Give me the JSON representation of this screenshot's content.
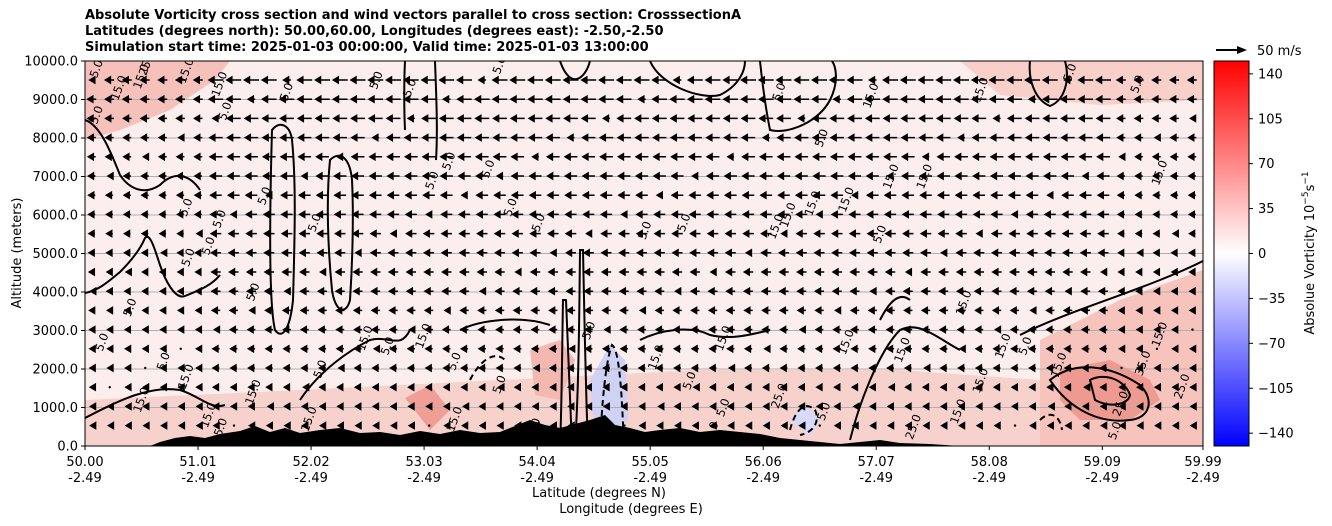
{
  "chart_data": {
    "type": "heatmap",
    "title_lines": [
      "Absolute Vorticity cross section and wind vectors parallel to cross section: CrosssectionA",
      "Latitudes (degrees north): 50.00,60.00, Longitudes (degrees east): -2.50,-2.50",
      "Simulation start time: 2025-01-03 00:00:00, Valid time: 2025-01-03 13:00:00"
    ],
    "ylabel": "Altitude (meters)",
    "xlabel_lines": [
      "Latitude (degrees N)",
      "Longitude (degrees E)"
    ],
    "ylim": [
      0,
      10000
    ],
    "yticks": [
      "0.0",
      "1000.0",
      "2000.0",
      "3000.0",
      "4000.0",
      "5000.0",
      "6000.0",
      "7000.0",
      "8000.0",
      "9000.0",
      "10000.0"
    ],
    "x_positions": [
      50.0,
      51.01,
      52.02,
      53.03,
      54.04,
      55.05,
      56.06,
      57.07,
      58.08,
      59.09,
      59.99
    ],
    "xtick_lat": [
      "50.00",
      "51.01",
      "52.02",
      "53.03",
      "54.04",
      "55.05",
      "56.06",
      "57.07",
      "58.08",
      "59.09",
      "59.99"
    ],
    "xtick_lon": [
      "-2.49",
      "-2.49",
      "-2.49",
      "-2.49",
      "-2.49",
      "-2.49",
      "-2.49",
      "-2.49",
      "-2.49",
      "-2.49",
      "-2.49"
    ],
    "horizontal_grid": true,
    "colorbar": {
      "label": "Absolue Vorticity 10$^{-5}$s$^{-1}$",
      "label_main": "Absolue Vorticity 10",
      "label_exp1": "−5",
      "label_mid": "s",
      "label_exp2": "−1",
      "range": [
        -150,
        150
      ],
      "ticks": [
        "140",
        "105",
        "70",
        "35",
        "0",
        "−35",
        "−70",
        "−105",
        "−140"
      ],
      "tick_values": [
        140,
        105,
        70,
        35,
        0,
        -35,
        -70,
        -105,
        -140
      ],
      "color_low": "#0000ff",
      "color_mid": "#ffffff",
      "color_high": "#ff0000"
    },
    "quiver_key": "50 m/s",
    "contour_labels": [
      {
        "text": "5.0",
        "x": 50.15,
        "y": 2700
      },
      {
        "text": "5.0",
        "x": 50.4,
        "y": 3600
      },
      {
        "text": "5.0",
        "x": 50.92,
        "y": 4900
      },
      {
        "text": "5.0",
        "x": 50.9,
        "y": 6200
      },
      {
        "text": "5.0",
        "x": 51.2,
        "y": 5900
      },
      {
        "text": "5.0",
        "x": 51.5,
        "y": 4000
      },
      {
        "text": "5.0",
        "x": 51.1,
        "y": 5200
      },
      {
        "text": "5.0",
        "x": 51.6,
        "y": 6500
      },
      {
        "text": "15.0",
        "x": 51.2,
        "y": 9400
      },
      {
        "text": "5.0",
        "x": 51.25,
        "y": 8700
      },
      {
        "text": "5.0",
        "x": 51.8,
        "y": 9200
      },
      {
        "text": "5.0",
        "x": 53.1,
        "y": 6900
      },
      {
        "text": "5.0",
        "x": 53.25,
        "y": 7400
      },
      {
        "text": "5.0",
        "x": 53.6,
        "y": 7200
      },
      {
        "text": "5.0",
        "x": 53.8,
        "y": 6200
      },
      {
        "text": "5.0",
        "x": 52.05,
        "y": 5800
      },
      {
        "text": "5.0",
        "x": 52.6,
        "y": 9500
      },
      {
        "text": "5.0",
        "x": 52.9,
        "y": 9300
      },
      {
        "text": "5.0",
        "x": 54.05,
        "y": 5800
      },
      {
        "text": "5.0",
        "x": 55.0,
        "y": 5600
      },
      {
        "text": "5.0",
        "x": 55.35,
        "y": 5800
      },
      {
        "text": "5.0",
        "x": 56.58,
        "y": 8000
      },
      {
        "text": "5.0",
        "x": 56.2,
        "y": 9200
      },
      {
        "text": "15.0",
        "x": 56.17,
        "y": 5700
      },
      {
        "text": "15.0",
        "x": 56.28,
        "y": 6000
      },
      {
        "text": "15.0",
        "x": 56.5,
        "y": 6300
      },
      {
        "text": "15.0",
        "x": 56.8,
        "y": 6400
      },
      {
        "text": "15.0",
        "x": 57.02,
        "y": 9100
      },
      {
        "text": "5.0",
        "x": 57.1,
        "y": 5500
      },
      {
        "text": "15.0",
        "x": 57.2,
        "y": 7000
      },
      {
        "text": "15.0",
        "x": 57.5,
        "y": 7000
      },
      {
        "text": "15.0",
        "x": 57.85,
        "y": 3720
      },
      {
        "text": "15.0",
        "x": 58.0,
        "y": 9250
      },
      {
        "text": "15.0",
        "x": 59.6,
        "y": 7100
      },
      {
        "text": "5.0",
        "x": 58.8,
        "y": 9700
      },
      {
        "text": "5.0",
        "x": 59.4,
        "y": 9400
      },
      {
        "text": "15.0",
        "x": 52.5,
        "y": 2800
      },
      {
        "text": "15.0",
        "x": 53.02,
        "y": 2860
      },
      {
        "text": "15.0",
        "x": 55.7,
        "y": 2800
      },
      {
        "text": "15.0",
        "x": 56.8,
        "y": 2700
      },
      {
        "text": "15.0",
        "x": 57.3,
        "y": 2500
      },
      {
        "text": "15.0",
        "x": 58.2,
        "y": 2600
      },
      {
        "text": "15.0",
        "x": 59.6,
        "y": 2900
      },
      {
        "text": "35.0",
        "x": 59.45,
        "y": 2150
      },
      {
        "text": "25.0",
        "x": 59.25,
        "y": 1100
      },
      {
        "text": "25.0",
        "x": 59.8,
        "y": 1550
      },
      {
        "text": "25.0",
        "x": 57.4,
        "y": 500
      },
      {
        "text": "25.0",
        "x": 54.0,
        "y": 400
      },
      {
        "text": "5.0",
        "x": 55.6,
        "y": 400
      },
      {
        "text": "15.0",
        "x": 51.1,
        "y": 800
      },
      {
        "text": "15.0",
        "x": 51.2,
        "y": 400
      },
      {
        "text": "15.0",
        "x": 52.0,
        "y": 700
      },
      {
        "text": "15.0",
        "x": 53.3,
        "y": 700
      },
      {
        "text": "15.0",
        "x": 51.5,
        "y": 1400
      },
      {
        "text": "15.0",
        "x": 50.5,
        "y": 1200
      },
      {
        "text": "15.0",
        "x": 50.9,
        "y": 1800
      },
      {
        "text": "5.0",
        "x": 50.7,
        "y": 2200
      },
      {
        "text": "5.0",
        "x": 52.1,
        "y": 2000
      },
      {
        "text": "5.0",
        "x": 52.7,
        "y": 2600
      },
      {
        "text": "5.0",
        "x": 53.3,
        "y": 2200
      },
      {
        "text": "5.0",
        "x": 53.7,
        "y": 1600
      },
      {
        "text": "5.0",
        "x": 54.5,
        "y": 3000
      },
      {
        "text": "5.0",
        "x": 55.4,
        "y": 1700
      },
      {
        "text": "15.0",
        "x": 55.1,
        "y": 2300
      },
      {
        "text": "15.0",
        "x": 58.7,
        "y": 2100
      },
      {
        "text": "5.0",
        "x": 58.4,
        "y": 2600
      },
      {
        "text": "15.0",
        "x": 58.0,
        "y": 1700
      },
      {
        "text": "25.0",
        "x": 56.2,
        "y": 1300
      },
      {
        "text": "5.0",
        "x": 55.7,
        "y": 1000
      },
      {
        "text": "5.0",
        "x": 56.6,
        "y": 900
      },
      {
        "text": "15.0",
        "x": 57.8,
        "y": 900
      },
      {
        "text": "5.0",
        "x": 59.2,
        "y": 400
      },
      {
        "text": "5.0",
        "x": 50.1,
        "y": 9800
      },
      {
        "text": "15.0",
        "x": 50.3,
        "y": 9300
      },
      {
        "text": "15.0",
        "x": 50.5,
        "y": 9600
      },
      {
        "text": "25.0",
        "x": 50.55,
        "y": 9950
      },
      {
        "text": "15.0",
        "x": 50.9,
        "y": 9750
      },
      {
        "text": "5.0",
        "x": 50.1,
        "y": 8600
      },
      {
        "text": "5.0",
        "x": 53.7,
        "y": 9900
      }
    ]
  }
}
